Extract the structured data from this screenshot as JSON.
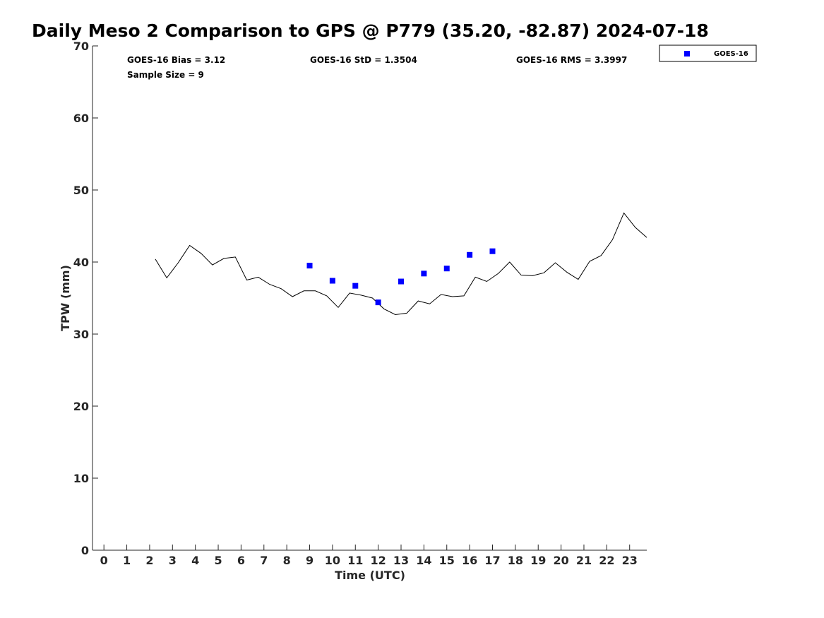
{
  "chart_data": {
    "type": "scatter",
    "title": "Daily Meso 2 Comparison to GPS @ P779 (35.20, -82.87) 2024-07-18",
    "xlabel": "Time (UTC)",
    "ylabel": "TPW (mm)",
    "xlim": [
      -0.5,
      23.75
    ],
    "ylim": [
      0,
      70
    ],
    "x_ticks": [
      "0",
      "1",
      "2",
      "3",
      "4",
      "5",
      "6",
      "7",
      "8",
      "9",
      "10",
      "11",
      "12",
      "13",
      "14",
      "15",
      "16",
      "17",
      "18",
      "19",
      "20",
      "21",
      "22",
      "23"
    ],
    "y_ticks": [
      "0",
      "10",
      "20",
      "30",
      "40",
      "50",
      "60",
      "70"
    ],
    "grid": false,
    "legend_position": "top-right",
    "stats": {
      "bias": "GOES-16 Bias = 3.12",
      "sample_size": "Sample Size = 9",
      "std": "GOES-16 StD = 1.3504",
      "rms": "GOES-16 RMS = 3.3997"
    },
    "series": [
      {
        "type": "line",
        "color": "#000000",
        "x": [
          2.25,
          2.75,
          3.25,
          3.75,
          4.25,
          4.75,
          5.25,
          5.75,
          6.25,
          6.75,
          7.25,
          7.75,
          8.25,
          8.75,
          9.25,
          9.75,
          10.25,
          10.75,
          11.25,
          11.75,
          12.25,
          12.75,
          13.25,
          13.75,
          14.25,
          14.75,
          15.25,
          15.75,
          16.25,
          16.75,
          17.25,
          17.75,
          18.25,
          18.75,
          19.25,
          19.75,
          20.25,
          20.75,
          21.25,
          21.75,
          22.25,
          22.75,
          23.25,
          23.75
        ],
        "values": [
          40.4,
          37.8,
          39.9,
          42.3,
          41.2,
          39.6,
          40.5,
          40.7,
          37.5,
          37.9,
          36.9,
          36.3,
          35.2,
          36.0,
          36.0,
          35.3,
          33.7,
          35.7,
          35.4,
          35.0,
          33.5,
          32.7,
          32.9,
          34.6,
          34.2,
          35.5,
          35.2,
          35.3,
          37.9,
          37.3,
          38.4,
          40.0,
          38.2,
          38.1,
          38.5,
          39.9,
          38.6,
          37.6,
          40.1,
          40.9,
          43.1,
          46.8,
          44.8,
          43.4
        ]
      },
      {
        "name": "GOES-16",
        "type": "scatter",
        "color": "#0000ff",
        "x": [
          9,
          10,
          11,
          12,
          13,
          14,
          15,
          16,
          17
        ],
        "values": [
          39.5,
          37.4,
          36.7,
          34.4,
          37.3,
          38.4,
          39.1,
          41.0,
          41.5
        ]
      }
    ]
  }
}
